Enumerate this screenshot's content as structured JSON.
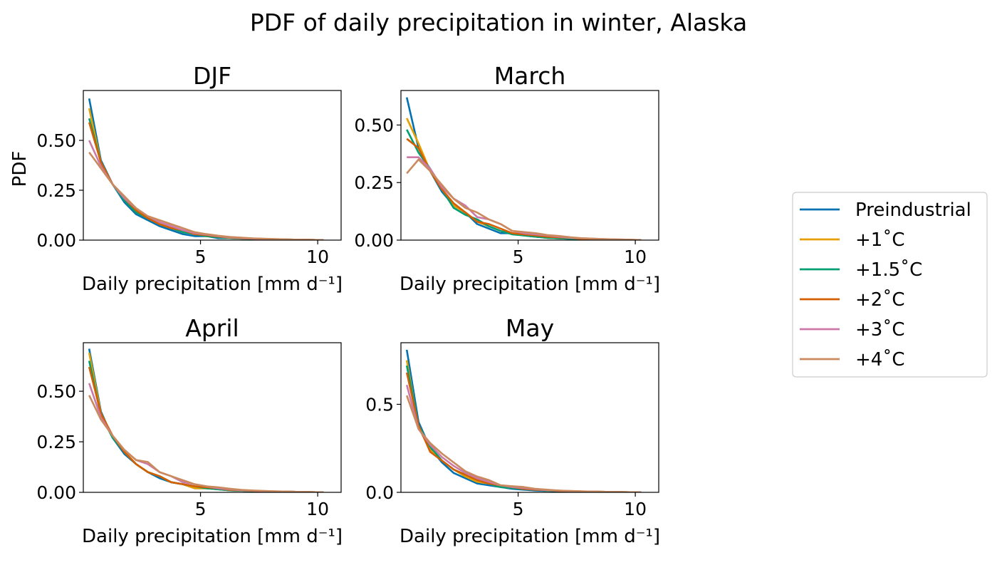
{
  "figure": {
    "title": "PDF of daily precipitation in winter, Alaska"
  },
  "series_styles": [
    {
      "name": "Preindustrial",
      "color": "#0072b2"
    },
    {
      "name": "+1˚C",
      "color": "#e69f00"
    },
    {
      "name": "+1.5˚C",
      "color": "#009e73"
    },
    {
      "name": "+2˚C",
      "color": "#d55e00"
    },
    {
      "name": "+3˚C",
      "color": "#cc79a7"
    },
    {
      "name": "+4˚C",
      "color": "#ca8a5e"
    }
  ],
  "legend": {
    "position": "center-right"
  },
  "chart_data": [
    {
      "type": "line",
      "title": "DJF",
      "xlabel": "Daily precipitation [mm d⁻¹]",
      "ylabel": "PDF",
      "xlim": [
        0,
        11
      ],
      "ylim": [
        0,
        0.75
      ],
      "xticks": [
        5,
        10
      ],
      "xtick_labels": [
        "5",
        "10"
      ],
      "yticks": [
        0,
        0.25,
        0.5
      ],
      "ytick_labels": [
        "0.00",
        "0.25",
        "0.50"
      ],
      "x": [
        0.25,
        0.75,
        1.25,
        1.75,
        2.25,
        2.75,
        3.25,
        3.75,
        4.25,
        4.75,
        5.25,
        5.75,
        6.25,
        6.75,
        7.25,
        7.75,
        8.25,
        8.75,
        9.25,
        9.75,
        10.25
      ],
      "series": [
        {
          "name": "Preindustrial",
          "values": [
            0.71,
            0.4,
            0.28,
            0.19,
            0.13,
            0.1,
            0.07,
            0.05,
            0.03,
            0.02,
            0.02,
            0.01,
            0.01,
            0.008,
            0.006,
            0.005,
            0.004,
            0.003,
            0.002,
            0.001,
            0.0
          ]
        },
        {
          "name": "+1˚C",
          "values": [
            0.66,
            0.39,
            0.28,
            0.2,
            0.14,
            0.11,
            0.08,
            0.06,
            0.04,
            0.03,
            0.02,
            0.015,
            0.01,
            0.008,
            0.006,
            0.005,
            0.004,
            0.003,
            0.002,
            0.001,
            0.0
          ]
        },
        {
          "name": "+1.5˚C",
          "values": [
            0.61,
            0.39,
            0.28,
            0.2,
            0.14,
            0.11,
            0.08,
            0.06,
            0.04,
            0.03,
            0.02,
            0.015,
            0.01,
            0.008,
            0.006,
            0.005,
            0.004,
            0.003,
            0.002,
            0.001,
            0.0
          ]
        },
        {
          "name": "+2˚C",
          "values": [
            0.59,
            0.39,
            0.28,
            0.21,
            0.15,
            0.11,
            0.08,
            0.06,
            0.05,
            0.03,
            0.025,
            0.018,
            0.012,
            0.009,
            0.007,
            0.005,
            0.004,
            0.003,
            0.002,
            0.001,
            0.0
          ]
        },
        {
          "name": "+3˚C",
          "values": [
            0.5,
            0.37,
            0.28,
            0.21,
            0.16,
            0.12,
            0.09,
            0.07,
            0.05,
            0.035,
            0.028,
            0.02,
            0.014,
            0.01,
            0.008,
            0.006,
            0.004,
            0.003,
            0.002,
            0.001,
            0.0
          ]
        },
        {
          "name": "+4˚C",
          "values": [
            0.44,
            0.36,
            0.28,
            0.22,
            0.16,
            0.12,
            0.1,
            0.08,
            0.06,
            0.04,
            0.03,
            0.022,
            0.016,
            0.012,
            0.009,
            0.007,
            0.005,
            0.003,
            0.002,
            0.001,
            0.0
          ]
        }
      ]
    },
    {
      "type": "line",
      "title": "March",
      "xlabel": "Daily precipitation [mm d⁻¹]",
      "ylabel": "",
      "xlim": [
        0,
        11
      ],
      "ylim": [
        0,
        0.65
      ],
      "xticks": [
        5,
        10
      ],
      "xtick_labels": [
        "5",
        "10"
      ],
      "yticks": [
        0,
        0.25,
        0.5
      ],
      "ytick_labels": [
        "0.00",
        "0.25",
        "0.50"
      ],
      "x": [
        0.25,
        0.75,
        1.25,
        1.75,
        2.25,
        2.75,
        3.25,
        3.75,
        4.25,
        4.75,
        5.25,
        5.75,
        6.25,
        6.75,
        7.25,
        7.75,
        8.25,
        8.75,
        9.25,
        9.75,
        10.25
      ],
      "series": [
        {
          "name": "Preindustrial",
          "values": [
            0.62,
            0.4,
            0.3,
            0.21,
            0.15,
            0.12,
            0.07,
            0.05,
            0.03,
            0.03,
            0.02,
            0.015,
            0.01,
            0.008,
            0.006,
            0.005,
            0.004,
            0.003,
            0.002,
            0.001,
            0.0
          ]
        },
        {
          "name": "+1˚C",
          "values": [
            0.53,
            0.42,
            0.3,
            0.22,
            0.15,
            0.12,
            0.08,
            0.06,
            0.04,
            0.03,
            0.02,
            0.015,
            0.01,
            0.008,
            0.006,
            0.005,
            0.004,
            0.003,
            0.002,
            0.001,
            0.0
          ]
        },
        {
          "name": "+1.5˚C",
          "values": [
            0.48,
            0.38,
            0.31,
            0.22,
            0.14,
            0.11,
            0.09,
            0.06,
            0.04,
            0.025,
            0.02,
            0.015,
            0.01,
            0.008,
            0.006,
            0.005,
            0.004,
            0.003,
            0.002,
            0.001,
            0.0
          ]
        },
        {
          "name": "+2˚C",
          "values": [
            0.44,
            0.4,
            0.3,
            0.22,
            0.16,
            0.12,
            0.08,
            0.07,
            0.05,
            0.03,
            0.025,
            0.02,
            0.015,
            0.012,
            0.01,
            0.005,
            0.004,
            0.003,
            0.002,
            0.001,
            0.0
          ]
        },
        {
          "name": "+3˚C",
          "values": [
            0.36,
            0.36,
            0.31,
            0.23,
            0.18,
            0.15,
            0.1,
            0.09,
            0.07,
            0.04,
            0.03,
            0.025,
            0.02,
            0.015,
            0.01,
            0.008,
            0.006,
            0.004,
            0.003,
            0.002,
            0.0
          ]
        },
        {
          "name": "+4˚C",
          "values": [
            0.29,
            0.35,
            0.3,
            0.24,
            0.18,
            0.14,
            0.12,
            0.09,
            0.07,
            0.04,
            0.035,
            0.03,
            0.022,
            0.018,
            0.012,
            0.008,
            0.006,
            0.004,
            0.003,
            0.002,
            0.0
          ]
        }
      ]
    },
    {
      "type": "line",
      "title": "April",
      "xlabel": "Daily precipitation [mm d⁻¹]",
      "ylabel": "",
      "xlim": [
        0,
        11
      ],
      "ylim": [
        0,
        0.74
      ],
      "xticks": [
        5,
        10
      ],
      "xtick_labels": [
        "5",
        "10"
      ],
      "yticks": [
        0,
        0.25,
        0.5
      ],
      "ytick_labels": [
        "0.00",
        "0.25",
        "0.50"
      ],
      "x": [
        0.25,
        0.75,
        1.25,
        1.75,
        2.25,
        2.75,
        3.25,
        3.75,
        4.25,
        4.75,
        5.25,
        5.75,
        6.25,
        6.75,
        7.25,
        7.75,
        8.25,
        8.75,
        9.25,
        9.75,
        10.25
      ],
      "series": [
        {
          "name": "Preindustrial",
          "values": [
            0.71,
            0.4,
            0.27,
            0.19,
            0.14,
            0.1,
            0.07,
            0.05,
            0.04,
            0.02,
            0.02,
            0.015,
            0.01,
            0.008,
            0.006,
            0.005,
            0.004,
            0.003,
            0.002,
            0.001,
            0.0
          ]
        },
        {
          "name": "+1˚C",
          "values": [
            0.69,
            0.39,
            0.28,
            0.2,
            0.14,
            0.1,
            0.08,
            0.05,
            0.04,
            0.02,
            0.02,
            0.015,
            0.01,
            0.008,
            0.006,
            0.005,
            0.004,
            0.003,
            0.002,
            0.001,
            0.0
          ]
        },
        {
          "name": "+1.5˚C",
          "values": [
            0.65,
            0.38,
            0.27,
            0.2,
            0.14,
            0.1,
            0.08,
            0.05,
            0.04,
            0.03,
            0.02,
            0.015,
            0.01,
            0.008,
            0.006,
            0.005,
            0.004,
            0.003,
            0.002,
            0.001,
            0.0
          ]
        },
        {
          "name": "+2˚C",
          "values": [
            0.62,
            0.39,
            0.28,
            0.2,
            0.14,
            0.1,
            0.08,
            0.05,
            0.04,
            0.03,
            0.025,
            0.02,
            0.012,
            0.01,
            0.007,
            0.005,
            0.004,
            0.003,
            0.002,
            0.001,
            0.0
          ]
        },
        {
          "name": "+3˚C",
          "values": [
            0.54,
            0.37,
            0.28,
            0.21,
            0.16,
            0.14,
            0.1,
            0.08,
            0.05,
            0.04,
            0.03,
            0.02,
            0.015,
            0.01,
            0.008,
            0.006,
            0.004,
            0.003,
            0.002,
            0.001,
            0.0
          ]
        },
        {
          "name": "+4˚C",
          "values": [
            0.48,
            0.36,
            0.28,
            0.21,
            0.16,
            0.15,
            0.1,
            0.08,
            0.06,
            0.04,
            0.03,
            0.025,
            0.018,
            0.012,
            0.009,
            0.007,
            0.005,
            0.003,
            0.002,
            0.001,
            0.0
          ]
        }
      ]
    },
    {
      "type": "line",
      "title": "May",
      "xlabel": "Daily precipitation [mm d⁻¹]",
      "ylabel": "",
      "xlim": [
        0,
        11
      ],
      "ylim": [
        0,
        0.85
      ],
      "xticks": [
        5,
        10
      ],
      "xtick_labels": [
        "5",
        "10"
      ],
      "yticks": [
        0,
        0.5
      ],
      "ytick_labels": [
        "0.0",
        "0.5"
      ],
      "x": [
        0.25,
        0.75,
        1.25,
        1.75,
        2.25,
        2.75,
        3.25,
        3.75,
        4.25,
        4.75,
        5.25,
        5.75,
        6.25,
        6.75,
        7.25,
        7.75,
        8.25,
        8.75,
        9.25,
        9.75,
        10.25
      ],
      "series": [
        {
          "name": "Preindustrial",
          "values": [
            0.81,
            0.4,
            0.25,
            0.17,
            0.11,
            0.08,
            0.05,
            0.04,
            0.03,
            0.02,
            0.015,
            0.01,
            0.008,
            0.006,
            0.005,
            0.004,
            0.003,
            0.002,
            0.002,
            0.001,
            0.0
          ]
        },
        {
          "name": "+1˚C",
          "values": [
            0.75,
            0.37,
            0.24,
            0.18,
            0.13,
            0.09,
            0.06,
            0.05,
            0.03,
            0.025,
            0.02,
            0.015,
            0.01,
            0.008,
            0.006,
            0.005,
            0.004,
            0.003,
            0.002,
            0.001,
            0.0
          ]
        },
        {
          "name": "+1.5˚C",
          "values": [
            0.72,
            0.38,
            0.26,
            0.18,
            0.13,
            0.1,
            0.07,
            0.05,
            0.03,
            0.025,
            0.02,
            0.015,
            0.01,
            0.008,
            0.006,
            0.005,
            0.004,
            0.003,
            0.002,
            0.001,
            0.0
          ]
        },
        {
          "name": "+2˚C",
          "values": [
            0.68,
            0.38,
            0.23,
            0.18,
            0.13,
            0.1,
            0.07,
            0.05,
            0.04,
            0.03,
            0.02,
            0.015,
            0.012,
            0.008,
            0.006,
            0.005,
            0.004,
            0.003,
            0.002,
            0.001,
            0.0
          ]
        },
        {
          "name": "+3˚C",
          "values": [
            0.61,
            0.36,
            0.27,
            0.2,
            0.15,
            0.11,
            0.08,
            0.06,
            0.04,
            0.03,
            0.025,
            0.018,
            0.012,
            0.01,
            0.007,
            0.005,
            0.004,
            0.003,
            0.002,
            0.001,
            0.0
          ]
        },
        {
          "name": "+4˚C",
          "values": [
            0.55,
            0.36,
            0.28,
            0.22,
            0.17,
            0.12,
            0.09,
            0.07,
            0.04,
            0.035,
            0.03,
            0.02,
            0.015,
            0.01,
            0.008,
            0.006,
            0.004,
            0.003,
            0.002,
            0.001,
            0.0
          ]
        }
      ]
    }
  ]
}
